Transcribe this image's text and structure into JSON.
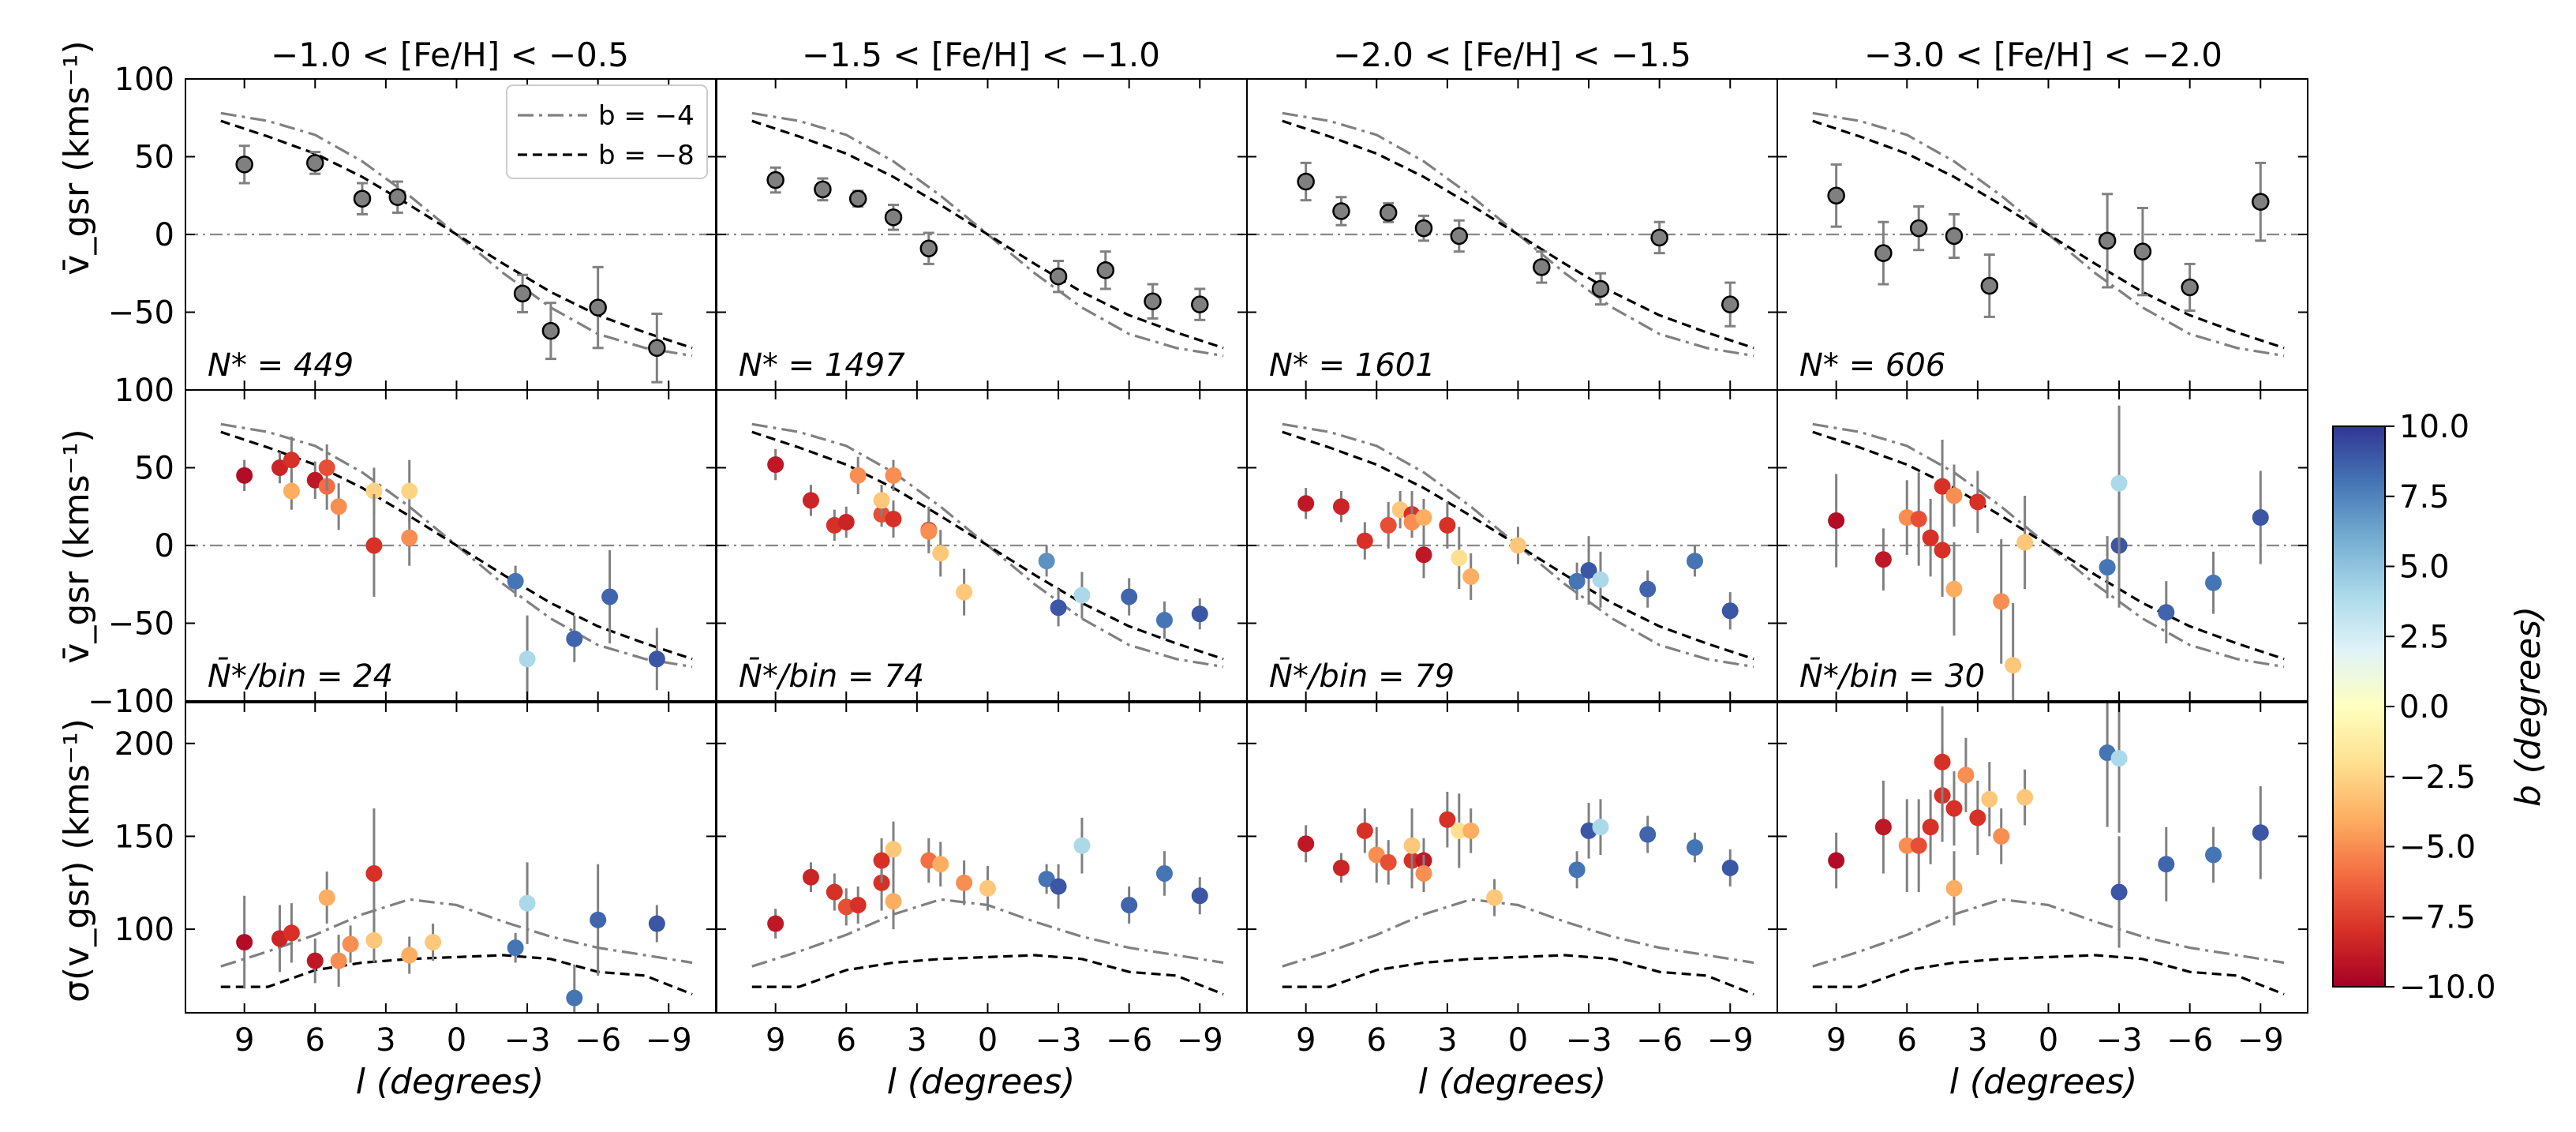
{
  "chart_data": {
    "type": "scatter",
    "layout": "3 rows x 4 columns, shared x axis, reversed longitude axis",
    "column_titles": [
      "−1.0 < [Fe/H] < −0.5",
      "−1.5 < [Fe/H] < −1.0",
      "−2.0 < [Fe/H] < −1.5",
      "−3.0 < [Fe/H] < −2.0"
    ],
    "xlabel": "l (degrees)",
    "x_range": [
      11.5,
      -11
    ],
    "x_ticks": [
      9,
      6,
      3,
      0,
      -3,
      -6,
      -9
    ],
    "x_tick_labels": [
      "9",
      "6",
      "3",
      "0",
      "−3",
      "−6",
      "−9"
    ],
    "rows": [
      {
        "name": "mean-velocity",
        "ylabel": "v̄_gsr (kms⁻¹)",
        "ylim": [
          -100,
          100
        ],
        "y_ticks": [
          100,
          50,
          0,
          -50
        ],
        "y_tick_labels": [
          "100",
          "50",
          "0",
          "−50"
        ],
        "annotations": [
          "N* = 449",
          "N* = 1497",
          "N* = 1601",
          "N* = 606"
        ],
        "zero_line": true
      },
      {
        "name": "binned-mean-velocity",
        "ylabel": "v̄_gsr (kms⁻¹)",
        "ylim": [
          -100,
          100
        ],
        "y_ticks": [
          100,
          50,
          0,
          -50,
          -100
        ],
        "y_tick_labels": [
          "100",
          "50",
          "0",
          "−50",
          "−100"
        ],
        "annotations": [
          "N̄*/bin = 24",
          "N̄*/bin = 74",
          "N̄*/bin = 79",
          "N̄*/bin = 30"
        ],
        "zero_line": true
      },
      {
        "name": "velocity-dispersion",
        "ylabel": "σ(v_gsr) (kms⁻¹)",
        "ylim": [
          55,
          222
        ],
        "y_ticks": [
          200,
          150,
          100
        ],
        "y_tick_labels": [
          "200",
          "150",
          "100"
        ],
        "annotations": [
          "",
          "",
          "",
          ""
        ],
        "zero_line": false
      }
    ],
    "legend": {
      "position": "top-right of first panel",
      "entries": [
        {
          "label": "b = −4",
          "style": "dash-dot gray"
        },
        {
          "label": "b = −8",
          "style": "dashed black"
        }
      ]
    },
    "models": {
      "l": [
        10,
        8,
        6,
        4,
        2,
        0,
        -2,
        -4,
        -6,
        -8,
        -10
      ],
      "vmean_b4": [
        78,
        73,
        64,
        47,
        25,
        0,
        -25,
        -47,
        -64,
        -73,
        -78
      ],
      "vmean_b8": [
        73,
        63,
        52,
        37,
        19,
        0,
        -19,
        -37,
        -52,
        -63,
        -73
      ],
      "sigma_b4": [
        80,
        88,
        97,
        108,
        116,
        113,
        104,
        96,
        90,
        86,
        82
      ],
      "sigma_b8": [
        69,
        69,
        78,
        82,
        84,
        85,
        86,
        84,
        77,
        75,
        65
      ]
    },
    "colorbar": {
      "label": "b (degrees)",
      "range": [
        -10,
        10
      ],
      "ticks": [
        10,
        7.5,
        5,
        2.5,
        0,
        -2.5,
        -5,
        -7.5,
        -10
      ],
      "tick_labels": [
        "10.0",
        "7.5",
        "5.0",
        "2.5",
        "0.0",
        "−2.5",
        "−5.0",
        "−7.5",
        "−10.0"
      ],
      "colormap": "RdYlBu"
    },
    "panels": [
      {
        "row1": [
          [
            9,
            45,
            12
          ],
          [
            6,
            46,
            7
          ],
          [
            4,
            23,
            10
          ],
          [
            2.5,
            24,
            10
          ],
          [
            -2.8,
            -38,
            12
          ],
          [
            -4,
            -62,
            18
          ],
          [
            -6,
            -47,
            26
          ],
          [
            -8.5,
            -73,
            22
          ]
        ],
        "row2": [
          [
            9,
            45,
            10,
            -9.5
          ],
          [
            7.5,
            50,
            10,
            -8.5
          ],
          [
            7,
            55,
            15,
            -8
          ],
          [
            6,
            42,
            12,
            -9
          ],
          [
            5.5,
            38,
            15,
            -6
          ],
          [
            5.5,
            50,
            15,
            -7
          ],
          [
            5,
            25,
            15,
            -5
          ],
          [
            3.5,
            35,
            15,
            -2.5
          ],
          [
            2,
            35,
            20,
            -2.5
          ],
          [
            3.5,
            0,
            33,
            -8
          ],
          [
            2,
            5,
            18,
            -5
          ],
          [
            7,
            35,
            12,
            -4
          ],
          [
            -2.5,
            -23,
            10,
            8
          ],
          [
            -3,
            -73,
            28,
            4
          ],
          [
            -5,
            -60,
            15,
            8.5
          ],
          [
            -6.5,
            -33,
            30,
            8.5
          ],
          [
            -8.5,
            -73,
            20,
            9
          ]
        ],
        "row3": [
          [
            9,
            93,
            25,
            -9.5
          ],
          [
            7.5,
            95,
            18,
            -8.5
          ],
          [
            7,
            98,
            16,
            -8
          ],
          [
            6,
            83,
            12,
            -9
          ],
          [
            5.5,
            117,
            14,
            -4
          ],
          [
            5,
            83,
            14,
            -5
          ],
          [
            4.5,
            92,
            10,
            -5
          ],
          [
            3.5,
            130,
            35,
            -8
          ],
          [
            3.5,
            94,
            12,
            -3
          ],
          [
            2,
            86,
            10,
            -4
          ],
          [
            1,
            93,
            10,
            -3
          ],
          [
            -2.5,
            90,
            8,
            8
          ],
          [
            -3,
            114,
            22,
            4
          ],
          [
            -5,
            63,
            18,
            8
          ],
          [
            -6,
            105,
            30,
            8.5
          ],
          [
            -8.5,
            103,
            10,
            9
          ]
        ]
      },
      {
        "row1": [
          [
            9,
            35,
            8
          ],
          [
            7,
            29,
            7
          ],
          [
            5.5,
            23,
            5
          ],
          [
            4,
            11,
            8
          ],
          [
            2.5,
            -9,
            10
          ],
          [
            -3,
            -27,
            10
          ],
          [
            -5,
            -23,
            12
          ],
          [
            -7,
            -43,
            11
          ],
          [
            -9,
            -45,
            10
          ]
        ],
        "row2": [
          [
            9,
            52,
            10,
            -9
          ],
          [
            7.5,
            29,
            10,
            -8.5
          ],
          [
            6.5,
            13,
            10,
            -8
          ],
          [
            6,
            15,
            10,
            -8.5
          ],
          [
            5.5,
            45,
            12,
            -5
          ],
          [
            4.5,
            20,
            8,
            -7
          ],
          [
            4.5,
            29,
            10,
            -3
          ],
          [
            4,
            45,
            10,
            -5
          ],
          [
            4,
            17,
            12,
            -8
          ],
          [
            2.5,
            10,
            15,
            -7
          ],
          [
            2,
            -5,
            15,
            -3
          ],
          [
            1,
            -30,
            15,
            -3
          ],
          [
            2.5,
            9,
            10,
            -5
          ],
          [
            -2.5,
            -10,
            10,
            7
          ],
          [
            -3,
            -40,
            12,
            9
          ],
          [
            -4,
            -32,
            15,
            4
          ],
          [
            -6,
            -33,
            12,
            8.5
          ],
          [
            -7.5,
            -48,
            12,
            8
          ],
          [
            -9,
            -44,
            10,
            9
          ]
        ],
        "row3": [
          [
            9,
            103,
            8,
            -9
          ],
          [
            7.5,
            128,
            8,
            -8.5
          ],
          [
            6.5,
            120,
            10,
            -8
          ],
          [
            6,
            112,
            10,
            -7
          ],
          [
            5.5,
            113,
            10,
            -8
          ],
          [
            4.5,
            125,
            15,
            -8
          ],
          [
            4.5,
            137,
            12,
            -8
          ],
          [
            4,
            143,
            15,
            -3
          ],
          [
            4,
            115,
            15,
            -4
          ],
          [
            2.5,
            137,
            12,
            -6
          ],
          [
            2,
            135,
            12,
            -4
          ],
          [
            1,
            125,
            12,
            -5
          ],
          [
            0,
            122,
            12,
            -3
          ],
          [
            -2.5,
            127,
            8,
            8
          ],
          [
            -3,
            123,
            12,
            9
          ],
          [
            -4,
            145,
            15,
            4
          ],
          [
            -6,
            113,
            10,
            8.5
          ],
          [
            -7.5,
            130,
            12,
            8
          ],
          [
            -9,
            118,
            10,
            9
          ]
        ]
      },
      {
        "row1": [
          [
            9,
            34,
            12
          ],
          [
            7.5,
            15,
            9
          ],
          [
            5.5,
            14,
            6
          ],
          [
            4,
            4,
            8
          ],
          [
            2.5,
            -1,
            10
          ],
          [
            -1,
            -21,
            10
          ],
          [
            -3.5,
            -35,
            10
          ],
          [
            -6,
            -2,
            10
          ],
          [
            -9,
            -45,
            14
          ]
        ],
        "row2": [
          [
            9,
            27,
            10,
            -9
          ],
          [
            7.5,
            25,
            10,
            -8.5
          ],
          [
            6.5,
            3,
            12,
            -8
          ],
          [
            5.5,
            13,
            15,
            -7
          ],
          [
            5,
            23,
            12,
            -3
          ],
          [
            4.5,
            20,
            15,
            -8
          ],
          [
            4.5,
            15,
            10,
            -5
          ],
          [
            4,
            -6,
            15,
            -9
          ],
          [
            4,
            18,
            12,
            -4
          ],
          [
            3,
            13,
            15,
            -8
          ],
          [
            2.5,
            -8,
            20,
            -2
          ],
          [
            2,
            -20,
            15,
            -4
          ],
          [
            0,
            0,
            12,
            -3
          ],
          [
            -2.5,
            -23,
            12,
            8
          ],
          [
            -3,
            -16,
            22,
            9
          ],
          [
            -3.5,
            -22,
            18,
            4
          ],
          [
            -5.5,
            -28,
            12,
            8.5
          ],
          [
            -7.5,
            -10,
            10,
            8
          ],
          [
            -9,
            -42,
            12,
            9
          ]
        ],
        "row3": [
          [
            9,
            146,
            10,
            -9
          ],
          [
            7.5,
            133,
            8,
            -8.5
          ],
          [
            6.5,
            153,
            12,
            -8
          ],
          [
            6,
            140,
            15,
            -5
          ],
          [
            5.5,
            136,
            12,
            -7
          ],
          [
            4.5,
            137,
            15,
            -8
          ],
          [
            4.5,
            145,
            20,
            -3
          ],
          [
            4,
            137,
            12,
            -9
          ],
          [
            4,
            130,
            10,
            -5
          ],
          [
            3,
            159,
            15,
            -8
          ],
          [
            2.5,
            153,
            20,
            -2
          ],
          [
            2,
            153,
            12,
            -4
          ],
          [
            1,
            117,
            10,
            -3
          ],
          [
            -2.5,
            132,
            10,
            8
          ],
          [
            -3,
            153,
            15,
            9
          ],
          [
            -3.5,
            155,
            15,
            4
          ],
          [
            -5.5,
            151,
            10,
            8.5
          ],
          [
            -7.5,
            144,
            8,
            8
          ],
          [
            -9,
            133,
            10,
            9
          ]
        ]
      },
      {
        "row1": [
          [
            9,
            25,
            20
          ],
          [
            7,
            -12,
            20
          ],
          [
            5.5,
            4,
            14
          ],
          [
            4,
            -1,
            14
          ],
          [
            2.5,
            -33,
            20
          ],
          [
            -2.5,
            -4,
            30
          ],
          [
            -4,
            -11,
            28
          ],
          [
            -6,
            -34,
            15
          ],
          [
            -9,
            21,
            25
          ]
        ],
        "row2": [
          [
            9,
            16,
            30,
            -9.5
          ],
          [
            7,
            -9,
            20,
            -9
          ],
          [
            6,
            18,
            24,
            -5
          ],
          [
            5.5,
            17,
            30,
            -7
          ],
          [
            5,
            5,
            25,
            -8
          ],
          [
            4.5,
            38,
            30,
            -8
          ],
          [
            4.5,
            -3,
            30,
            -8
          ],
          [
            4,
            32,
            20,
            -5
          ],
          [
            4,
            -28,
            30,
            -4
          ],
          [
            3,
            28,
            20,
            -8
          ],
          [
            2,
            -36,
            40,
            -5
          ],
          [
            1,
            2,
            30,
            -3
          ],
          [
            1.5,
            -77,
            40,
            -3
          ],
          [
            -2.5,
            -14,
            20,
            8
          ],
          [
            -3,
            0,
            40,
            9
          ],
          [
            -3,
            40,
            50,
            4
          ],
          [
            -5,
            -43,
            20,
            8.5
          ],
          [
            -7,
            -24,
            20,
            8
          ],
          [
            -9,
            18,
            30,
            9
          ]
        ],
        "row3": [
          [
            9,
            137,
            15,
            -9.5
          ],
          [
            7,
            155,
            25,
            -9
          ],
          [
            6,
            145,
            25,
            -5
          ],
          [
            5.5,
            145,
            25,
            -7
          ],
          [
            5,
            155,
            20,
            -8
          ],
          [
            4.5,
            172,
            25,
            -8
          ],
          [
            4.5,
            190,
            30,
            -8
          ],
          [
            4,
            165,
            20,
            -8
          ],
          [
            4,
            122,
            20,
            -4
          ],
          [
            3.5,
            183,
            20,
            -5
          ],
          [
            3,
            160,
            20,
            -8
          ],
          [
            2.5,
            170,
            20,
            -3
          ],
          [
            2,
            150,
            15,
            -5
          ],
          [
            1,
            171,
            15,
            -3
          ],
          [
            -2.5,
            195,
            40,
            8
          ],
          [
            -3,
            192,
            40,
            4
          ],
          [
            -3,
            120,
            30,
            9
          ],
          [
            -5,
            135,
            20,
            8.5
          ],
          [
            -7,
            140,
            15,
            8
          ],
          [
            -9,
            152,
            25,
            9
          ]
        ]
      }
    ],
    "point_format": "rows 2-3: [l, value, error, b]; row 1: [l, value, error] drawn in gray"
  }
}
